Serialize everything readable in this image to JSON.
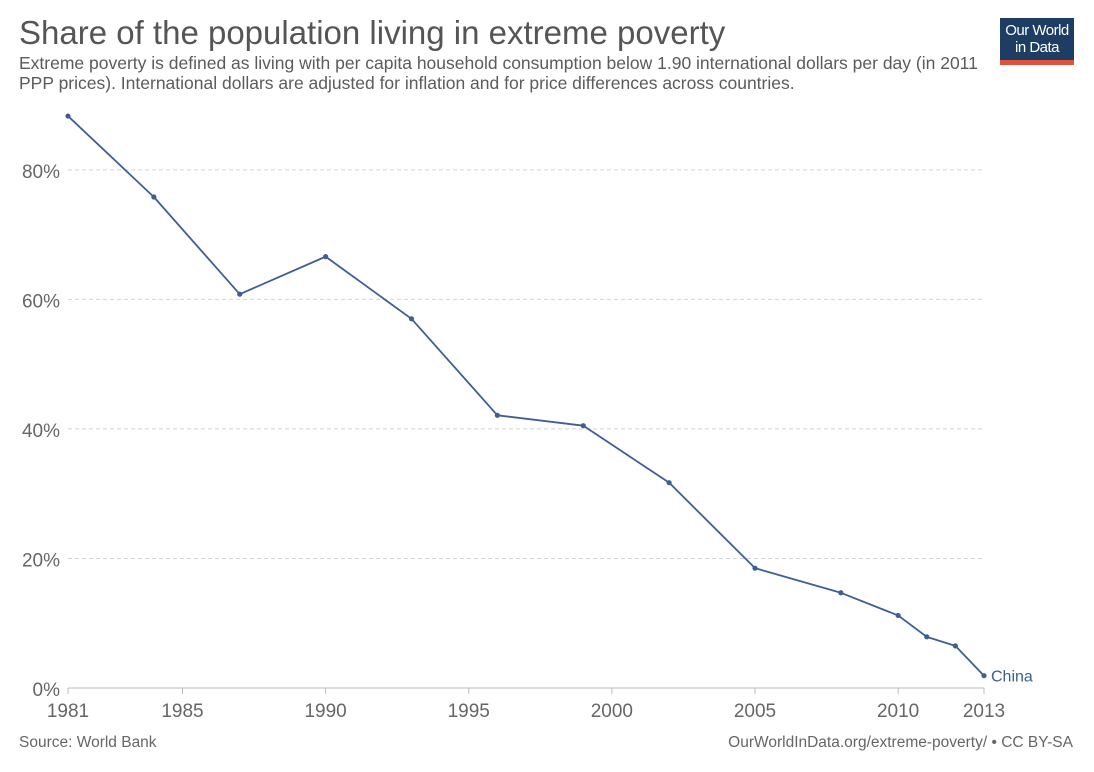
{
  "header": {
    "title": "Share of the population living in extreme poverty",
    "subtitle": "Extreme poverty is defined as living with per capita household consumption below 1.90 international dollars per day (in 2011 PPP prices). International dollars are adjusted for inflation and for price differences across countries."
  },
  "logo": {
    "line1": "Our World",
    "line2": "in Data",
    "bg_color": "#1d3d63",
    "accent_color": "#e0523b"
  },
  "footer": {
    "source": "Source: World Bank",
    "url": "OurWorldInData.org/extreme-poverty/ • CC BY-SA"
  },
  "chart_data": {
    "type": "line",
    "title": "Share of the population living in extreme poverty",
    "xlabel": "",
    "ylabel": "",
    "xlim": [
      1981,
      2013
    ],
    "ylim": [
      0,
      88
    ],
    "x_ticks": [
      1981,
      1985,
      1990,
      1995,
      2000,
      2005,
      2010,
      2013
    ],
    "y_ticks": [
      0,
      20,
      40,
      60,
      80
    ],
    "y_tick_labels": [
      "0%",
      "20%",
      "40%",
      "60%",
      "80%"
    ],
    "grid": "horizontal dashed",
    "series": [
      {
        "name": "China",
        "color": "#3d5f94",
        "x": [
          1981,
          1984,
          1987,
          1990,
          1993,
          1996,
          1999,
          2002,
          2005,
          2008,
          2010,
          2011,
          2012,
          2013
        ],
        "values": [
          88.3,
          75.8,
          60.8,
          66.6,
          57.0,
          42.1,
          40.5,
          31.7,
          18.5,
          14.7,
          11.2,
          7.9,
          6.5,
          1.9
        ]
      }
    ]
  }
}
